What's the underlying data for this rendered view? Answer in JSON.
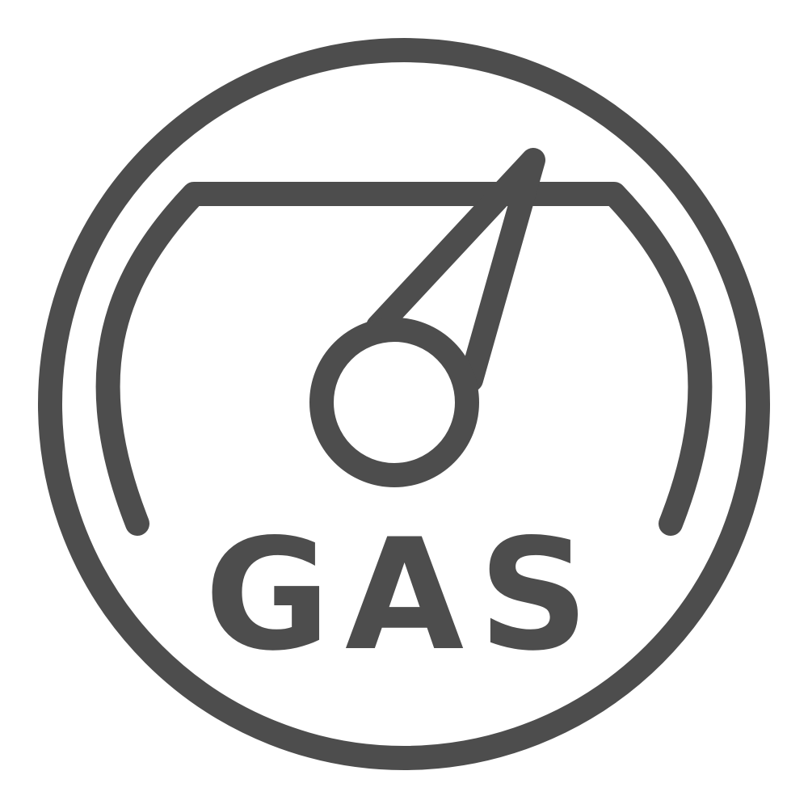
{
  "icon": {
    "name": "gas-gauge-icon",
    "label": "GAS",
    "stroke_color": "#4d4d4d",
    "background_color": "#ffffff"
  }
}
